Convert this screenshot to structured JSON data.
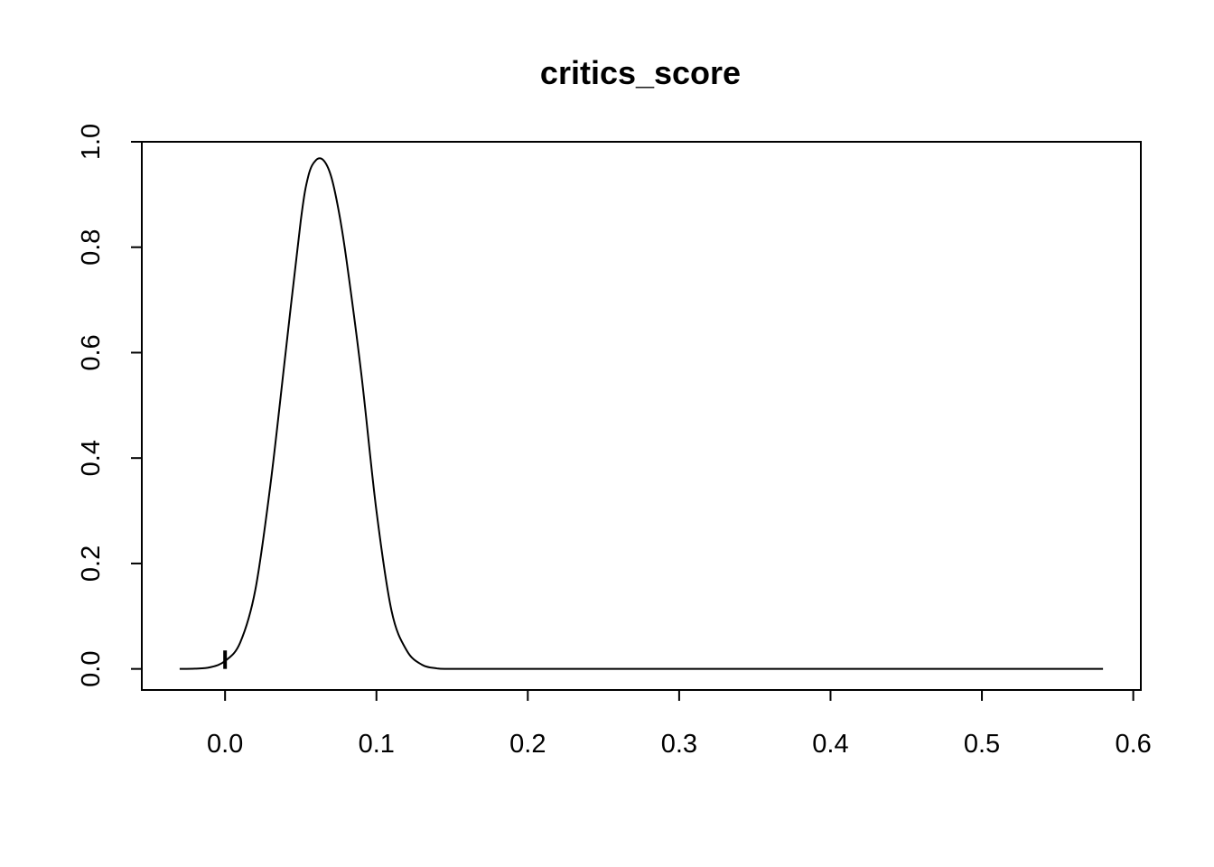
{
  "chart_data": {
    "type": "line",
    "title": "critics_score",
    "xlabel": "",
    "ylabel": "",
    "xlim": [
      -0.055,
      0.605
    ],
    "ylim": [
      -0.04,
      1.0
    ],
    "xticks": [
      0.0,
      0.1,
      0.2,
      0.3,
      0.4,
      0.5,
      0.6
    ],
    "xtick_labels": [
      "0.0",
      "0.1",
      "0.2",
      "0.3",
      "0.4",
      "0.5",
      "0.6"
    ],
    "yticks": [
      0.0,
      0.2,
      0.4,
      0.6,
      0.8,
      1.0
    ],
    "ytick_labels": [
      "0.0",
      "0.2",
      "0.4",
      "0.6",
      "0.8",
      "1.0"
    ],
    "grid": false,
    "legend": "none",
    "series": [
      {
        "x": [
          -0.03,
          -0.02,
          -0.01,
          0.0,
          0.01,
          0.02,
          0.03,
          0.04,
          0.05,
          0.055,
          0.06,
          0.065,
          0.07,
          0.075,
          0.08,
          0.09,
          0.1,
          0.11,
          0.12,
          0.13,
          0.14,
          0.15,
          0.2,
          0.3,
          0.4,
          0.5,
          0.58
        ],
        "y": [
          0.0,
          0.0005,
          0.003,
          0.015,
          0.05,
          0.15,
          0.35,
          0.6,
          0.85,
          0.935,
          0.965,
          0.965,
          0.935,
          0.87,
          0.78,
          0.56,
          0.3,
          0.11,
          0.035,
          0.008,
          0.001,
          0.0,
          0.0,
          0.0,
          0.0,
          0.0,
          0.0
        ]
      }
    ],
    "rug": {
      "x": [
        0.0
      ],
      "height": 0.035
    }
  }
}
